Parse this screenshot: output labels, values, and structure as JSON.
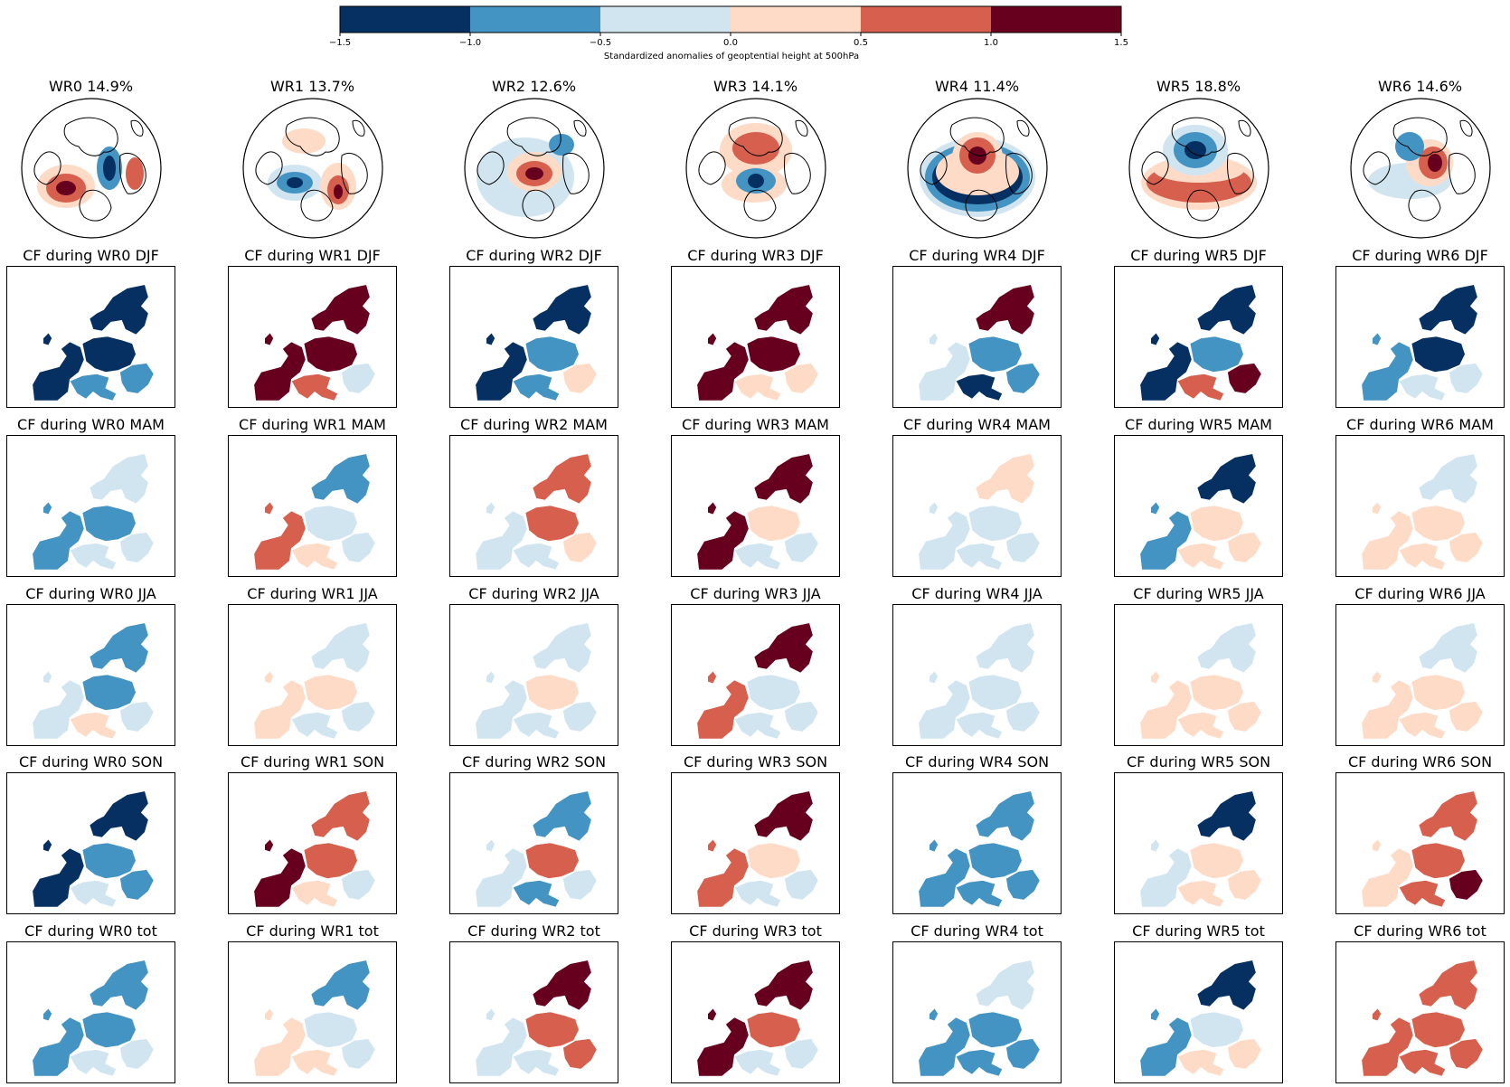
{
  "colorbar": {
    "label": "Standardized anomalies of geoptential height at 500hPa",
    "ticks": [
      "−1.5",
      "−1.0",
      "−0.5",
      "0.0",
      "0.5",
      "1.0",
      "1.5"
    ],
    "bins": [
      {
        "from": -1.5,
        "to": -1.0,
        "color": "#053061"
      },
      {
        "from": -1.0,
        "to": -0.5,
        "color": "#4393c3"
      },
      {
        "from": -0.5,
        "to": 0.0,
        "color": "#d1e5f0"
      },
      {
        "from": 0.0,
        "to": 0.5,
        "color": "#fddbc7"
      },
      {
        "from": 0.5,
        "to": 1.0,
        "color": "#d6604d"
      },
      {
        "from": 1.0,
        "to": 1.5,
        "color": "#67001f"
      }
    ]
  },
  "chart_data": {
    "type": "heatmap",
    "regimes": [
      {
        "title": "WR0 14.9%",
        "name": "WR0",
        "frequency_pct": 14.9
      },
      {
        "title": "WR1 13.7%",
        "name": "WR1",
        "frequency_pct": 13.7
      },
      {
        "title": "WR2 12.6%",
        "name": "WR2",
        "frequency_pct": 12.6
      },
      {
        "title": "WR3 14.1%",
        "name": "WR3",
        "frequency_pct": 14.1
      },
      {
        "title": "WR4 11.4%",
        "name": "WR4",
        "frequency_pct": 11.4
      },
      {
        "title": "WR5 18.8%",
        "name": "WR5",
        "frequency_pct": 18.8
      },
      {
        "title": "WR6 14.6%",
        "name": "WR6",
        "frequency_pct": 14.6
      }
    ],
    "seasons": [
      "DJF",
      "MAM",
      "JJA",
      "SON",
      "tot"
    ],
    "cf_titles": [
      [
        "CF during WR0 DJF",
        "CF during WR1 DJF",
        "CF during WR2 DJF",
        "CF during WR3 DJF",
        "CF during WR4 DJF",
        "CF during WR5 DJF",
        "CF during WR6 DJF"
      ],
      [
        "CF during WR0 MAM",
        "CF during WR1 MAM",
        "CF during WR2 MAM",
        "CF during WR3 MAM",
        "CF during WR4 MAM",
        "CF during WR5 MAM",
        "CF during WR6 MAM"
      ],
      [
        "CF during WR0 JJA",
        "CF during WR1 JJA",
        "CF during WR2 JJA",
        "CF during WR3 JJA",
        "CF during WR4 JJA",
        "CF during WR5 JJA",
        "CF during WR6 JJA"
      ],
      [
        "CF during WR0 SON",
        "CF during WR1 SON",
        "CF during WR2 SON",
        "CF during WR3 SON",
        "CF during WR4 SON",
        "CF during WR5 SON",
        "CF during WR6 SON"
      ],
      [
        "CF during WR0 tot",
        "CF during WR1 tot",
        "CF during WR2 tot",
        "CF during WR3 tot",
        "CF during WR4 tot",
        "CF during WR5 tot",
        "CF during WR6 tot"
      ]
    ],
    "region_order": [
      "north",
      "west",
      "central",
      "south",
      "east"
    ],
    "cf_anomalies": [
      [
        [
          -1.2,
          -1.3,
          -1.3,
          -0.6,
          -1.0
        ],
        [
          1.2,
          1.3,
          1.2,
          0.8,
          -0.2
        ],
        [
          -1.2,
          -1.3,
          -0.9,
          -0.6,
          0.3
        ],
        [
          1.3,
          1.3,
          1.3,
          0.2,
          0.1
        ],
        [
          1.3,
          -0.2,
          -0.8,
          -1.2,
          -0.9
        ],
        [
          -1.3,
          -1.3,
          -0.7,
          0.8,
          1.2
        ],
        [
          -1.3,
          -1.0,
          -1.3,
          -0.3,
          -0.4
        ]
      ],
      [
        [
          -0.5,
          -0.9,
          -0.9,
          -0.1,
          -0.3
        ],
        [
          -0.7,
          0.8,
          -0.3,
          0.1,
          -0.4
        ],
        [
          0.7,
          -0.4,
          0.6,
          -0.2,
          0.2
        ],
        [
          1.3,
          1.3,
          0.4,
          -0.2,
          -0.1
        ],
        [
          0.3,
          -0.4,
          -0.4,
          -0.3,
          -0.2
        ],
        [
          -1.2,
          -0.7,
          0.3,
          0.3,
          0.2
        ],
        [
          -0.1,
          0.1,
          0.2,
          0.1,
          0.4
        ]
      ],
      [
        [
          -0.7,
          -0.4,
          -0.7,
          0.2,
          -0.5
        ],
        [
          -0.1,
          0.3,
          0.3,
          -0.2,
          -0.4
        ],
        [
          -0.2,
          -0.1,
          0.2,
          -0.2,
          -0.4
        ],
        [
          1.1,
          0.7,
          -0.3,
          -0.2,
          -0.2
        ],
        [
          -0.2,
          -0.2,
          -0.3,
          -0.2,
          -0.3
        ],
        [
          -0.1,
          0.1,
          0.4,
          0.2,
          0.2
        ],
        [
          -0.5,
          0.2,
          0.2,
          0.2,
          0.3
        ]
      ],
      [
        [
          -1.3,
          -1.3,
          -1.0,
          -0.4,
          -0.6
        ],
        [
          0.8,
          1.2,
          0.5,
          0.2,
          -0.2
        ],
        [
          -0.6,
          -0.3,
          0.6,
          -0.6,
          -0.5
        ],
        [
          1.3,
          0.7,
          0.3,
          -0.3,
          -0.2
        ],
        [
          -1.0,
          -0.8,
          -0.8,
          -0.6,
          -0.8
        ],
        [
          -1.3,
          -0.3,
          0.2,
          0.3,
          0.2
        ],
        [
          0.6,
          0.3,
          0.7,
          0.9,
          1.2
        ]
      ],
      [
        [
          -0.6,
          -0.7,
          -0.8,
          -0.3,
          -0.5
        ],
        [
          -0.8,
          0.4,
          -0.3,
          0.3,
          -0.4
        ],
        [
          1.0,
          -0.2,
          0.9,
          -0.1,
          0.5
        ],
        [
          1.3,
          1.2,
          0.5,
          -0.1,
          -0.3
        ],
        [
          -0.4,
          -0.6,
          -0.7,
          -0.9,
          -0.6
        ],
        [
          -1.2,
          -0.6,
          -0.3,
          0.2,
          0.1
        ],
        [
          0.5,
          0.5,
          0.6,
          0.7,
          0.8
        ]
      ]
    ],
    "xlabel": "",
    "ylabel": "",
    "vmin": -1.5,
    "vmax": 1.5
  }
}
